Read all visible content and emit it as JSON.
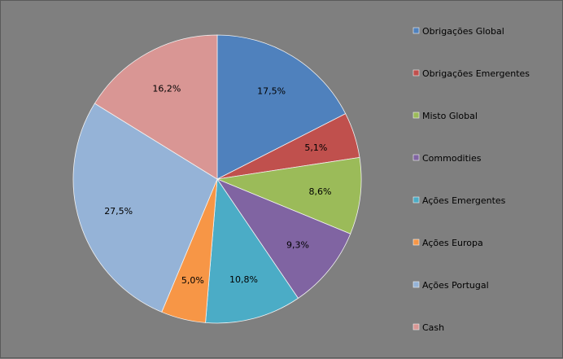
{
  "chart_data": {
    "type": "pie",
    "categories": [
      "Obrigações Global",
      "Obrigações Emergentes",
      "Misto Global",
      "Commodities",
      "Ações Emergentes",
      "Ações Europa",
      "Ações Portugal",
      "Cash"
    ],
    "values": [
      17.5,
      5.1,
      8.6,
      9.3,
      10.8,
      5.0,
      27.5,
      16.2
    ],
    "labels": [
      "17,5%",
      "5,1%",
      "8,6%",
      "9,3%",
      "10,8%",
      "5,0%",
      "27,5%",
      "16,2%"
    ],
    "colors": [
      "#4f81bd",
      "#c0504d",
      "#9bbb59",
      "#8064a2",
      "#4bacc6",
      "#f79646",
      "#95b3d7",
      "#d99694"
    ],
    "legend_position": "right",
    "start_angle_deg": 0,
    "direction": "clockwise"
  }
}
